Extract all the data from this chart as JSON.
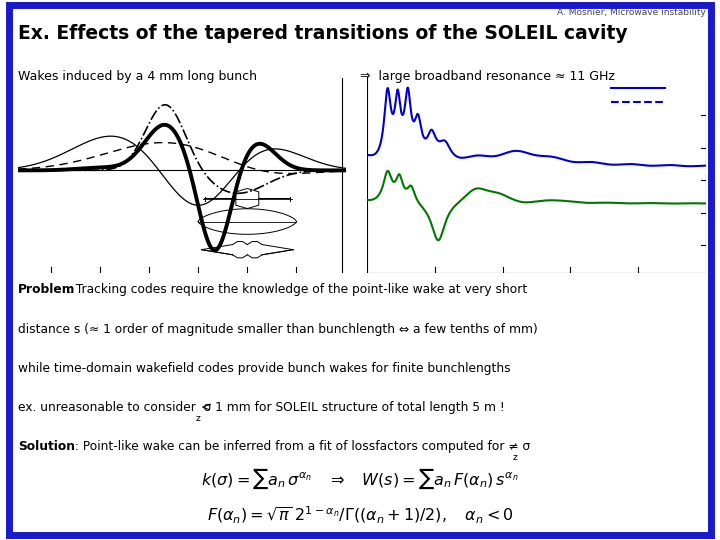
{
  "header_text": "A. Mosnier, Microwave instability",
  "title": "Ex. Effects of the tapered transitions of the SOLEIL cavity",
  "subtitle_left": "Wakes induced by a 4 mm long bunch",
  "subtitle_right": "⇒  large broadband resonance ≈ 11 GHz",
  "bg_color": "#ffffff",
  "border_color": "#1a1acc",
  "border_lw": 5,
  "blue_line_color": "#0000cc",
  "green_line_color": "#007700",
  "black_color": "#000000",
  "gray_color": "#555555"
}
